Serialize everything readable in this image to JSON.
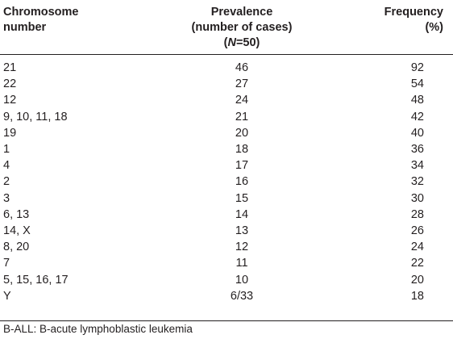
{
  "table": {
    "headers": [
      [
        "Chromosome",
        "number"
      ],
      [
        "Prevalence",
        "(number of cases)",
        "(N=50)"
      ],
      [
        "Frequency",
        "(%)"
      ]
    ],
    "rows": [
      [
        "21",
        "46",
        "92"
      ],
      [
        "22",
        "27",
        "54"
      ],
      [
        "12",
        "24",
        "48"
      ],
      [
        "9, 10, 11, 18",
        "21",
        "42"
      ],
      [
        "19",
        "20",
        "40"
      ],
      [
        "1",
        "18",
        "36"
      ],
      [
        "4",
        "17",
        "34"
      ],
      [
        "2",
        "16",
        "32"
      ],
      [
        "3",
        "15",
        "30"
      ],
      [
        "6, 13",
        "14",
        "28"
      ],
      [
        "14, X",
        "13",
        "26"
      ],
      [
        "8, 20",
        "12",
        "24"
      ],
      [
        "7",
        "11",
        "22"
      ],
      [
        "5, 15, 16, 17",
        "10",
        "20"
      ],
      [
        "Y",
        "6/33",
        "18"
      ]
    ]
  },
  "footnote": "B-ALL: B-acute lymphoblastic leukemia"
}
